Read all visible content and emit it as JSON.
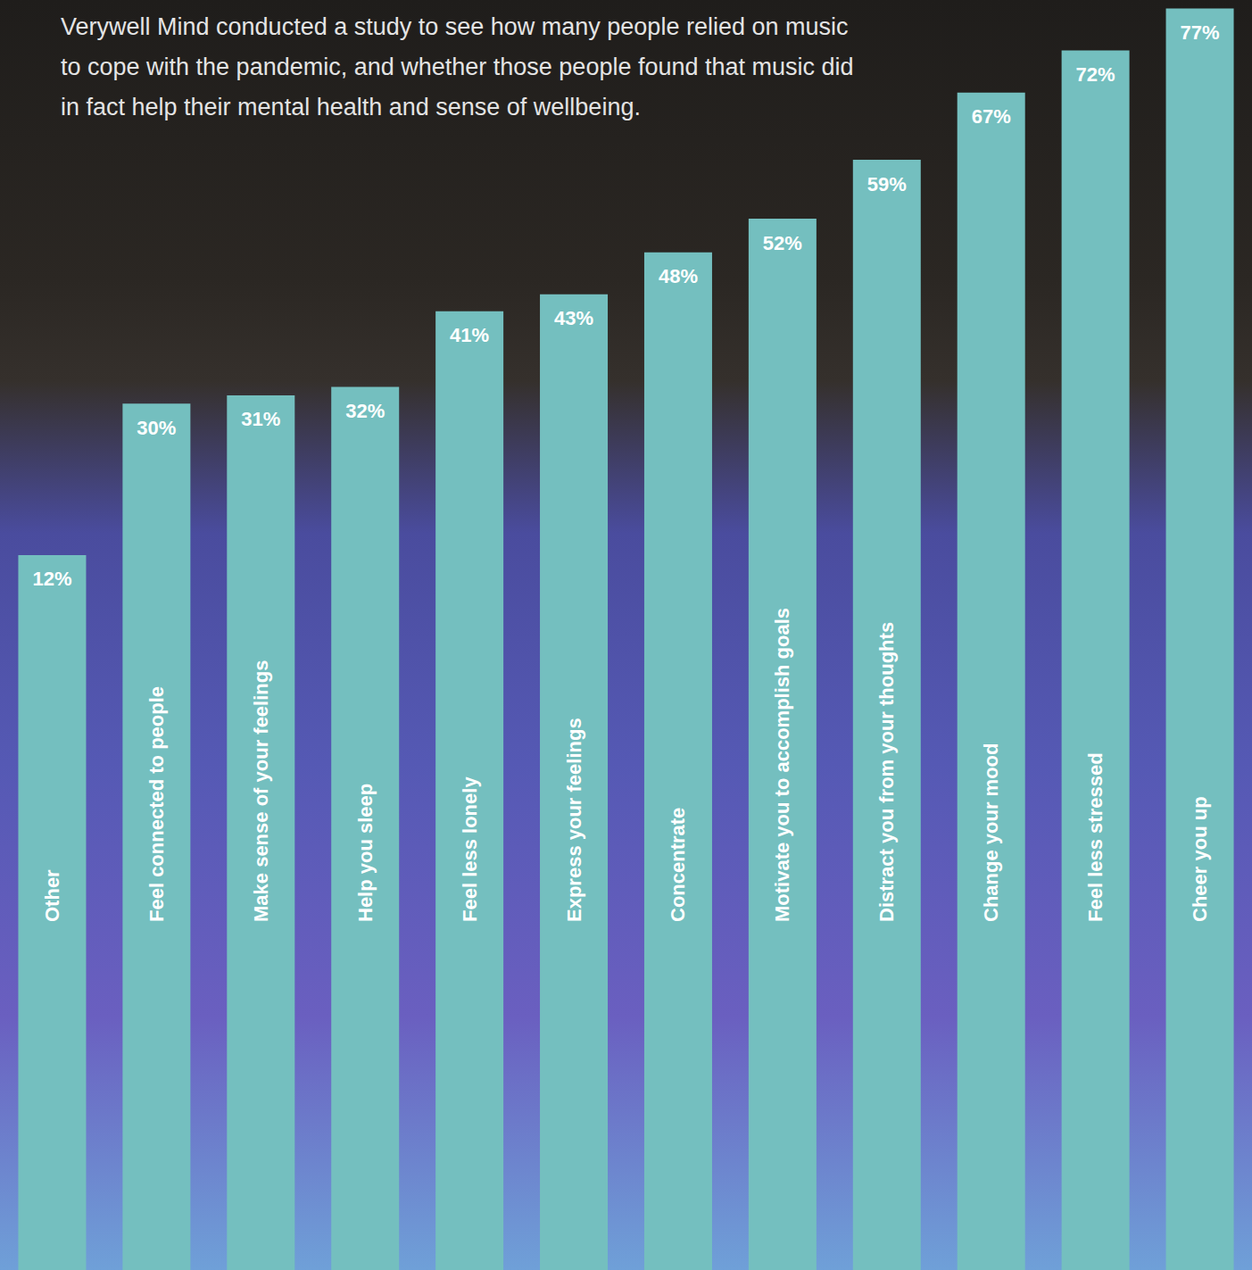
{
  "chart_data": {
    "type": "bar",
    "subtitle": "Verywell Mind conducted a study to see how many people relied on music to cope with the pandemic, and whether those people found that music did in fact help their mental health and sense of wellbeing.",
    "categories": [
      "Other",
      "Feel connected to people",
      "Make sense of your feelings",
      "Help you sleep",
      "Feel less lonely",
      "Express your feelings",
      "Concentrate",
      "Motivate you to accomplish goals",
      "Distract you from your thoughts",
      "Change your mood",
      "Feel less stressed",
      "Cheer you up"
    ],
    "values": [
      12,
      30,
      31,
      32,
      41,
      43,
      48,
      52,
      59,
      67,
      72,
      77
    ],
    "value_labels": [
      "12%",
      "30%",
      "31%",
      "32%",
      "41%",
      "43%",
      "48%",
      "52%",
      "59%",
      "67%",
      "72%",
      "77%"
    ],
    "color": "#74bfbf",
    "ylim": [
      -73,
      78
    ],
    "grid": false,
    "data_labels": true,
    "tick_labels": false
  }
}
